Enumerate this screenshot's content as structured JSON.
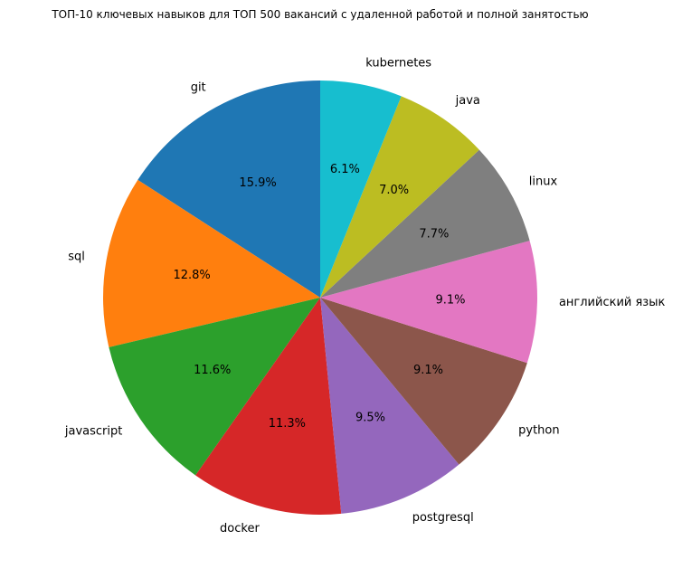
{
  "chart_data": {
    "type": "pie",
    "title": "ТОП-10 ключевых навыков для ТОП 500 вакансий с удаленной работой и полной занятостью",
    "start_angle_deg": 90,
    "direction": "counterclockwise",
    "slices": [
      {
        "label": "git",
        "value": 15.9,
        "pct_label": "15.9%",
        "color": "#1f77b4"
      },
      {
        "label": "sql",
        "value": 12.8,
        "pct_label": "12.8%",
        "color": "#ff7f0e"
      },
      {
        "label": "javascript",
        "value": 11.6,
        "pct_label": "11.6%",
        "color": "#2ca02c"
      },
      {
        "label": "docker",
        "value": 11.3,
        "pct_label": "11.3%",
        "color": "#d62728"
      },
      {
        "label": "postgresql",
        "value": 9.5,
        "pct_label": "9.5%",
        "color": "#9467bd"
      },
      {
        "label": "python",
        "value": 9.1,
        "pct_label": "9.1%",
        "color": "#8c564b"
      },
      {
        "label": "английский язык",
        "value": 9.1,
        "pct_label": "9.1%",
        "color": "#e377c2"
      },
      {
        "label": "linux",
        "value": 7.7,
        "pct_label": "7.7%",
        "color": "#7f7f7f"
      },
      {
        "label": "java",
        "value": 7.0,
        "pct_label": "7.0%",
        "color": "#bcbd22"
      },
      {
        "label": "kubernetes",
        "value": 6.1,
        "pct_label": "6.1%",
        "color": "#17becf"
      }
    ]
  }
}
